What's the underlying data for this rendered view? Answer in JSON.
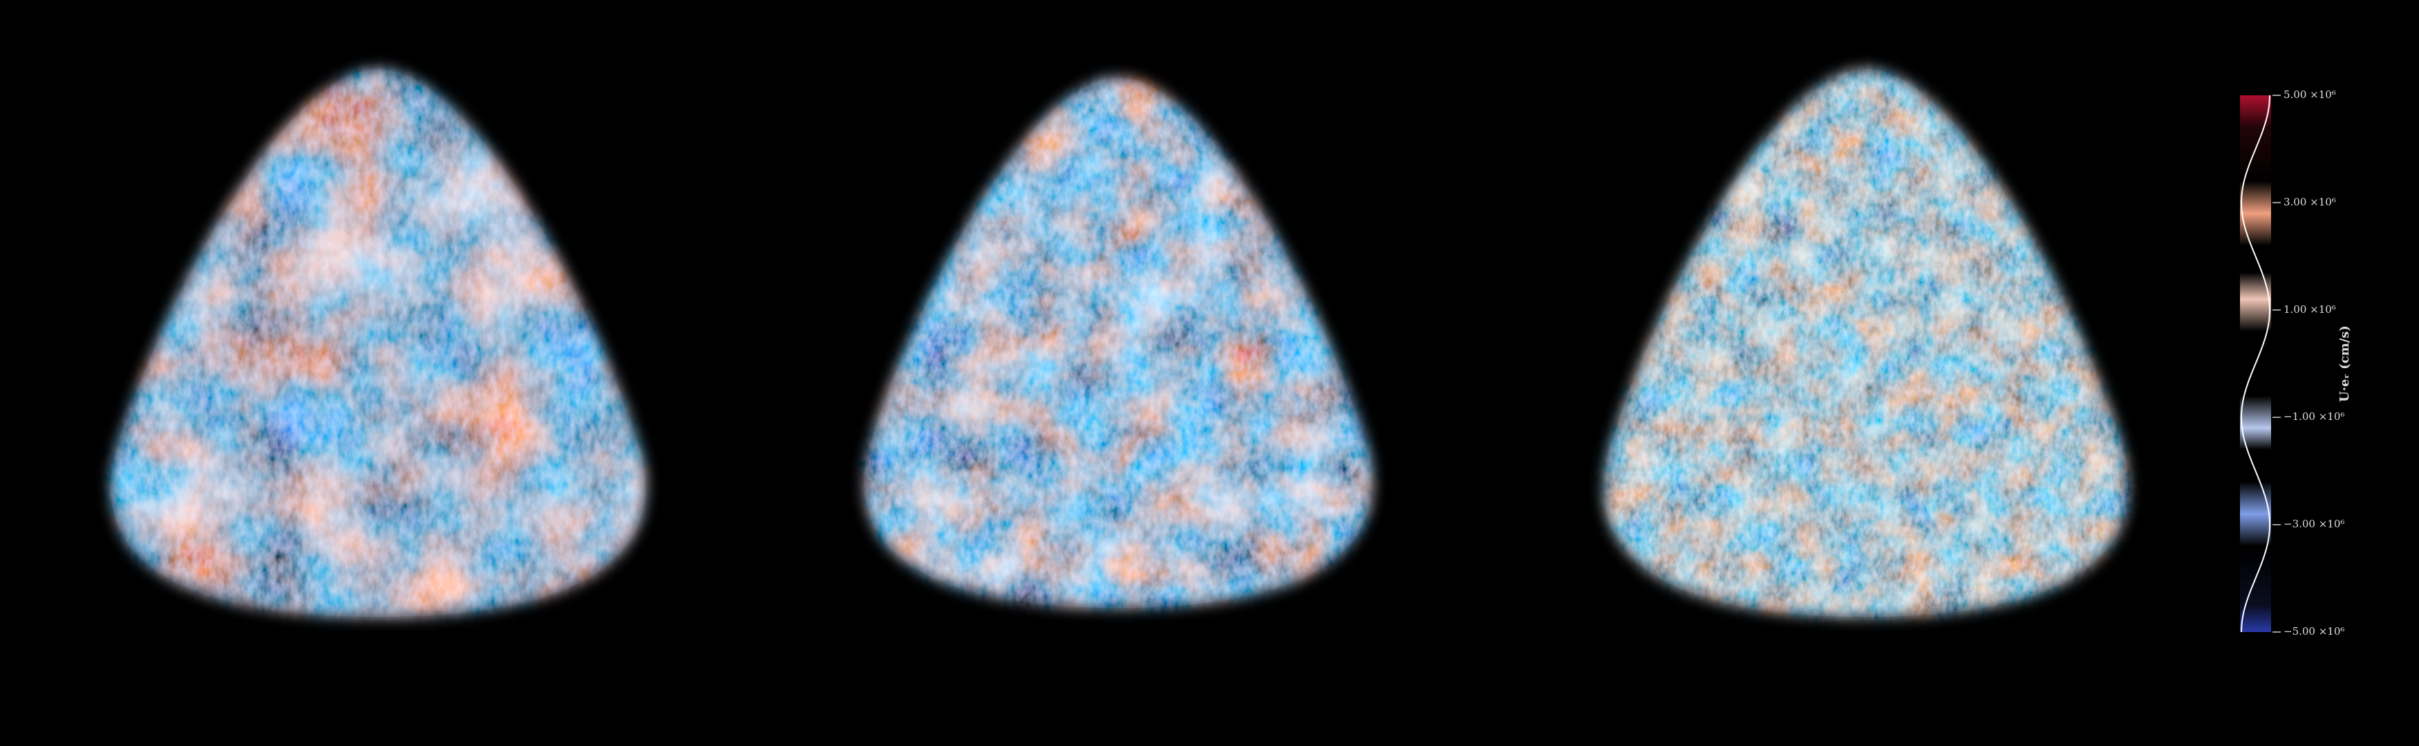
{
  "colorbar": {
    "label": "U·eᵣ (cm/s)",
    "range": [
      -5000000,
      5000000
    ],
    "ticks": [
      {
        "value": 5000000,
        "label": "5.00 ×10⁶"
      },
      {
        "value": 3000000,
        "label": "3.00 ×10⁶"
      },
      {
        "value": 1000000,
        "label": "1.00 ×10⁶"
      },
      {
        "value": -1000000,
        "label": "−1.00 ×10⁶"
      },
      {
        "value": -3000000,
        "label": "−3.00 ×10⁶"
      },
      {
        "value": -5000000,
        "label": "−5.00 ×10⁶"
      }
    ]
  }
}
